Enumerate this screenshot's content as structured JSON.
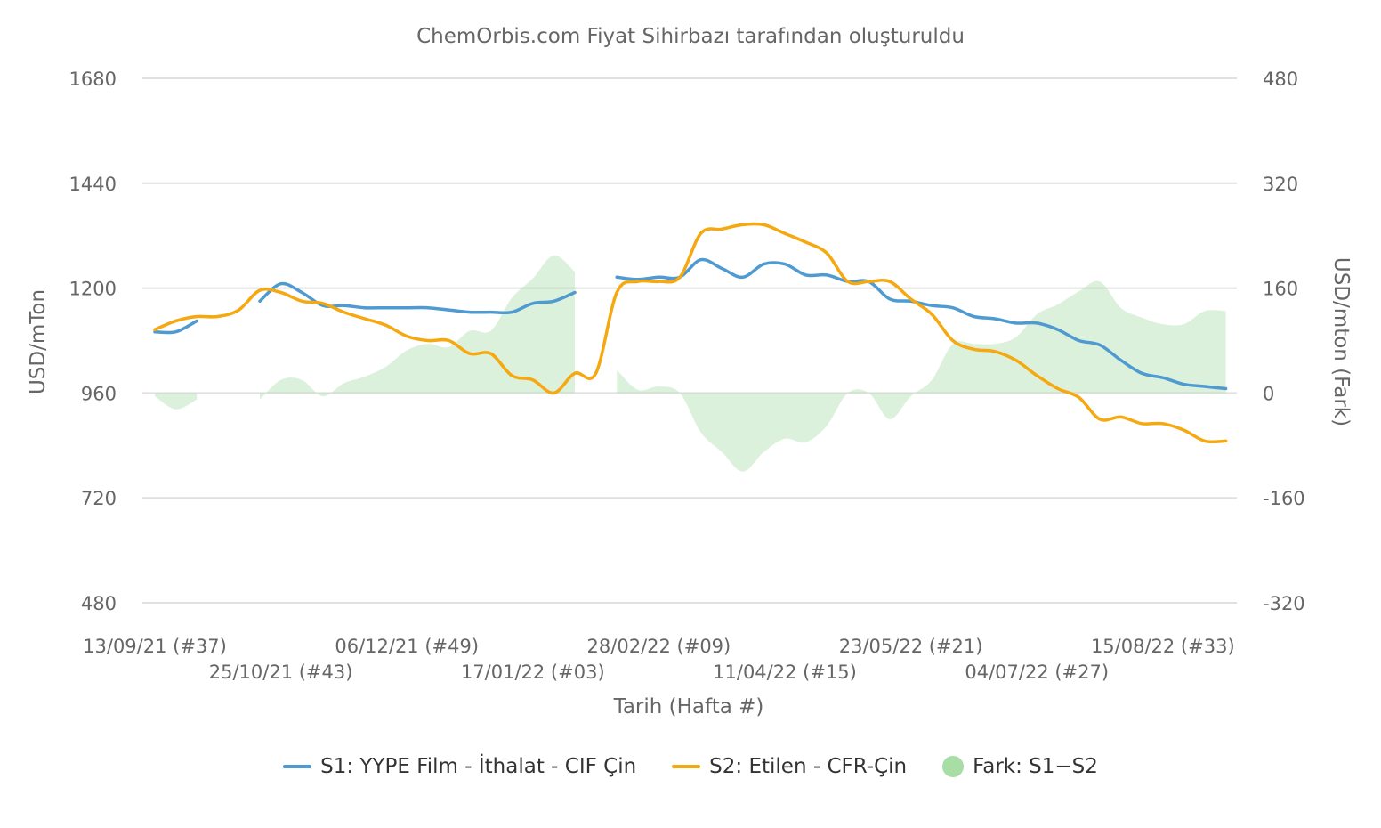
{
  "chart_data": {
    "type": "line",
    "title": "ChemOrbis.com Fiyat Sihirbazı tarafından oluşturuldu",
    "xlabel": "Tarih (Hafta #)",
    "ylabel": "USD/mTon",
    "ylabel_right": "USD/mton (Fark)",
    "ylim": [
      480,
      1680
    ],
    "ylim_right": [
      -320,
      480
    ],
    "yticks": [
      "1680",
      "1440",
      "1200",
      "960",
      "720",
      "480"
    ],
    "yticks_right": [
      "480",
      "320",
      "160",
      "0",
      "-160",
      "-320"
    ],
    "xticks": [
      {
        "week": 0,
        "label": "13/09/21 (#37)"
      },
      {
        "week": 6,
        "label": "25/10/21 (#43)"
      },
      {
        "week": 12,
        "label": "06/12/21 (#49)"
      },
      {
        "week": 18,
        "label": "17/01/22 (#03)"
      },
      {
        "week": 24,
        "label": "28/02/22 (#09)"
      },
      {
        "week": 30,
        "label": "11/04/22 (#15)"
      },
      {
        "week": 36,
        "label": "23/05/22 (#21)"
      },
      {
        "week": 42,
        "label": "04/07/22 (#27)"
      },
      {
        "week": 48,
        "label": "15/08/22 (#33)"
      }
    ],
    "x_weeks": [
      0,
      1,
      2,
      3,
      4,
      5,
      6,
      7,
      8,
      9,
      10,
      11,
      12,
      13,
      14,
      15,
      16,
      17,
      18,
      19,
      20,
      21,
      22,
      23,
      24,
      25,
      26,
      27,
      28,
      29,
      30,
      31,
      32,
      33,
      34,
      35,
      36,
      37,
      38,
      39,
      40,
      41,
      42,
      43,
      44,
      45,
      46,
      47,
      48,
      49,
      50,
      51
    ],
    "series": [
      {
        "name": "S1: YYPE Film - İthalat - CIF Çin",
        "color": "#4e9ad1",
        "axis": "left",
        "values": [
          1100,
          1100,
          1125,
          null,
          null,
          1170,
          1210,
          1190,
          1160,
          1160,
          1155,
          1155,
          1155,
          1155,
          1150,
          1145,
          1145,
          1145,
          1165,
          1170,
          1190,
          null,
          1225,
          1220,
          1225,
          1225,
          1265,
          1245,
          1225,
          1255,
          1255,
          1230,
          1230,
          1215,
          1215,
          1175,
          1170,
          1160,
          1155,
          1135,
          1130,
          1120,
          1120,
          1105,
          1080,
          1070,
          1035,
          1005,
          995,
          980,
          975,
          970
        ]
      },
      {
        "name": "S2: Etilen - CFR-Çin",
        "color": "#f5a80f",
        "axis": "left",
        "values": [
          1105,
          1125,
          1135,
          1135,
          1150,
          1195,
          1190,
          1170,
          1165,
          1145,
          1130,
          1115,
          1090,
          1080,
          1080,
          1050,
          1050,
          1000,
          990,
          960,
          1005,
          1005,
          1190,
          1215,
          1215,
          1225,
          1325,
          1335,
          1345,
          1345,
          1325,
          1305,
          1280,
          1215,
          1215,
          1215,
          1175,
          1140,
          1080,
          1060,
          1055,
          1035,
          1000,
          970,
          950,
          900,
          905,
          890,
          890,
          875,
          850,
          850
        ]
      },
      {
        "name": "Fark: S1−S2",
        "color": "#a8dda5",
        "axis": "right",
        "type": "area",
        "values": [
          -5,
          -25,
          -10,
          null,
          null,
          -10,
          20,
          20,
          -5,
          15,
          25,
          40,
          65,
          75,
          70,
          95,
          95,
          145,
          175,
          210,
          185,
          null,
          35,
          5,
          10,
          0,
          -60,
          -90,
          -120,
          -90,
          -70,
          -75,
          -50,
          0,
          0,
          -40,
          -5,
          20,
          75,
          75,
          75,
          85,
          120,
          135,
          155,
          170,
          130,
          115,
          105,
          105,
          125,
          125
        ]
      }
    ],
    "legend_position": "bottom",
    "grid": true
  }
}
